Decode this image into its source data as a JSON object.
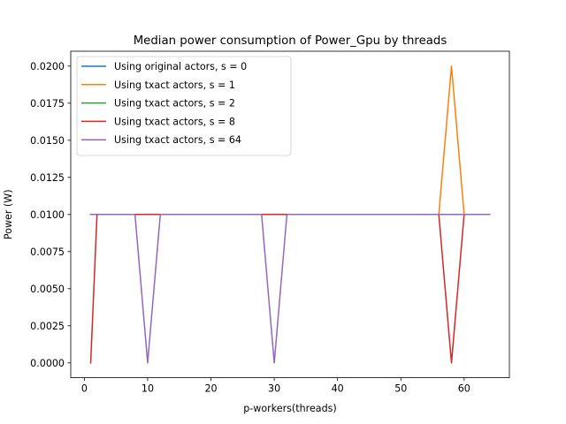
{
  "chart_data": {
    "type": "line",
    "title": "Median power consumption of Power_Gpu by threads",
    "xlabel": "p-workers(threads)",
    "ylabel": "Power (W)",
    "xlim": [
      -2.15,
      67.15
    ],
    "ylim": [
      -0.001,
      0.021
    ],
    "xticks": [
      0,
      10,
      20,
      30,
      40,
      50,
      60
    ],
    "yticks": [
      0.0,
      0.0025,
      0.005,
      0.0075,
      0.01,
      0.0125,
      0.015,
      0.0175,
      0.02
    ],
    "xtick_labels": [
      "0",
      "10",
      "20",
      "30",
      "40",
      "50",
      "60"
    ],
    "ytick_labels": [
      "0.0000",
      "0.0025",
      "0.0050",
      "0.0075",
      "0.0100",
      "0.0125",
      "0.0150",
      "0.0175",
      "0.0200"
    ],
    "grid": false,
    "legend_position": "upper-left",
    "series": [
      {
        "name": "Using original actors, s = 0",
        "color": "#1f77b4",
        "x": [
          1,
          2,
          4,
          8,
          10,
          12,
          16,
          20,
          24,
          28,
          30,
          32,
          36,
          40,
          44,
          48,
          52,
          56,
          58,
          60,
          64
        ],
        "y": [
          0.01,
          0.01,
          0.01,
          0.01,
          0.01,
          0.01,
          0.01,
          0.01,
          0.01,
          0.01,
          0.01,
          0.01,
          0.01,
          0.01,
          0.01,
          0.01,
          0.01,
          0.01,
          0.01,
          0.01,
          0.01
        ]
      },
      {
        "name": "Using txact actors, s = 1",
        "color": "#ff7f0e",
        "x": [
          1,
          2,
          4,
          8,
          10,
          12,
          16,
          20,
          24,
          28,
          30,
          32,
          36,
          40,
          44,
          48,
          52,
          56,
          58,
          60,
          64
        ],
        "y": [
          0.01,
          0.01,
          0.01,
          0.01,
          0.01,
          0.01,
          0.01,
          0.01,
          0.01,
          0.01,
          0.01,
          0.01,
          0.01,
          0.01,
          0.01,
          0.01,
          0.01,
          0.01,
          0.02,
          0.01,
          0.01
        ]
      },
      {
        "name": "Using txact actors, s = 2",
        "color": "#2ca02c",
        "x": [
          1,
          2,
          4,
          8,
          10,
          12,
          16,
          20,
          24,
          28,
          30,
          32,
          36,
          40,
          44,
          48,
          52,
          56,
          58,
          60,
          64
        ],
        "y": [
          0.01,
          0.01,
          0.01,
          0.01,
          0.01,
          0.01,
          0.01,
          0.01,
          0.01,
          0.01,
          0.01,
          0.01,
          0.01,
          0.01,
          0.01,
          0.01,
          0.01,
          0.01,
          0.01,
          0.01,
          0.01
        ]
      },
      {
        "name": "Using txact actors, s = 8",
        "color": "#d62728",
        "x": [
          1,
          2,
          4,
          8,
          10,
          12,
          16,
          20,
          24,
          28,
          30,
          32,
          36,
          40,
          44,
          48,
          52,
          56,
          58,
          60,
          64
        ],
        "y": [
          0.0,
          0.01,
          0.01,
          0.01,
          0.01,
          0.01,
          0.01,
          0.01,
          0.01,
          0.01,
          0.01,
          0.01,
          0.01,
          0.01,
          0.01,
          0.01,
          0.01,
          0.01,
          0.0,
          0.01,
          0.01
        ]
      },
      {
        "name": "Using txact actors, s = 64",
        "color": "#9467bd",
        "x": [
          1,
          2,
          4,
          8,
          10,
          12,
          16,
          20,
          24,
          28,
          30,
          32,
          36,
          40,
          44,
          48,
          52,
          56,
          58,
          60,
          64
        ],
        "y": [
          0.01,
          0.01,
          0.01,
          0.01,
          0.0,
          0.01,
          0.01,
          0.01,
          0.01,
          0.01,
          0.0,
          0.01,
          0.01,
          0.01,
          0.01,
          0.01,
          0.01,
          0.01,
          0.01,
          0.01,
          0.01
        ]
      }
    ]
  }
}
